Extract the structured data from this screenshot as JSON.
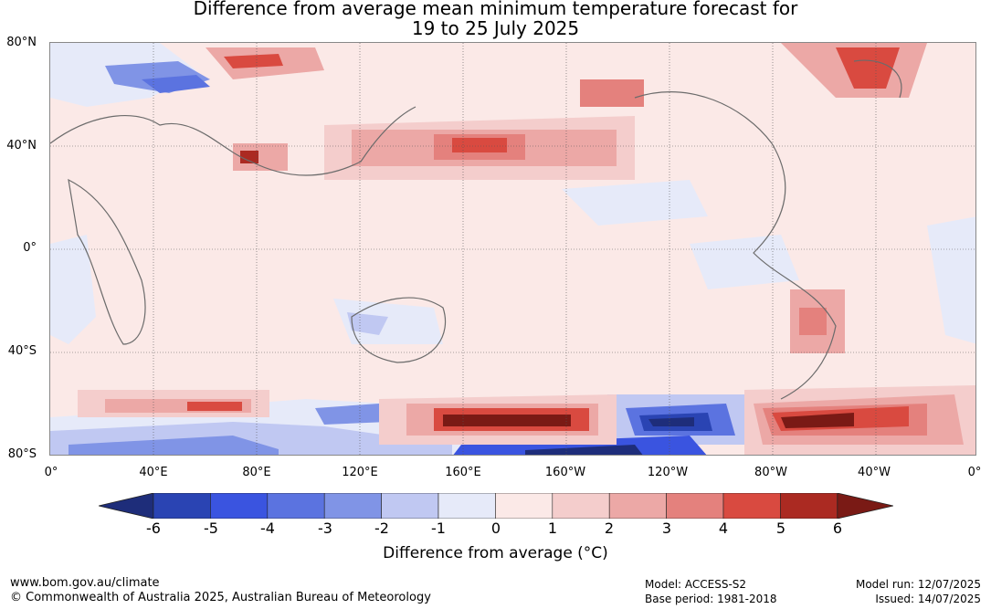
{
  "title_line1": "Difference from average mean minimum temperature forecast for",
  "title_line2": "19 to 25 July 2025",
  "lat_labels": [
    "80°N",
    "40°N",
    "0°",
    "40°S",
    "80°S"
  ],
  "lon_labels": [
    "0°",
    "40°E",
    "80°E",
    "120°E",
    "160°E",
    "160°W",
    "120°W",
    "80°W",
    "40°W",
    "0°"
  ],
  "colorbar": {
    "ticks": [
      "-6",
      "-5",
      "-4",
      "-3",
      "-2",
      "-1",
      "0",
      "1",
      "2",
      "3",
      "4",
      "5",
      "6"
    ],
    "colors": [
      "#1e2d7a",
      "#2a44b3",
      "#3a54e0",
      "#5b73e0",
      "#8094e6",
      "#c0c8f2",
      "#e6eaf9",
      "#fbe9e7",
      "#f4cdcc",
      "#eca8a6",
      "#e4817d",
      "#d94a40",
      "#ab2a22",
      "#7a1a15"
    ],
    "label": "Difference from average (°C)"
  },
  "footer": {
    "website": "www.bom.gov.au/climate",
    "copyright": "© Commonwealth of Australia 2025, Australian Bureau of Meteorology",
    "model": "Model: ACCESS-S2",
    "base_period": "Base period: 1981-2018",
    "model_run": "Model run: 12/07/2025",
    "issued": "Issued: 14/07/2025"
  }
}
